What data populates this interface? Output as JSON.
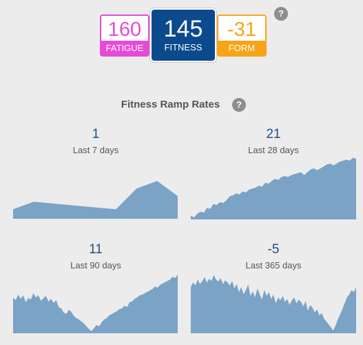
{
  "summary": {
    "fatigue": {
      "value": "160",
      "label": "FATIGUE",
      "color": "#e64bd7"
    },
    "fitness": {
      "value": "145",
      "label": "FITNESS",
      "color": "#0c4a8e"
    },
    "form": {
      "value": "-31",
      "label": "FORM",
      "color": "#f7a417"
    },
    "help_icon": "?"
  },
  "ramp": {
    "title": "Fitness Ramp Rates",
    "help_icon": "?",
    "fill_color": "#7aa3c6",
    "panels": [
      {
        "id": "p7",
        "value": "1",
        "label": "Last 7 days",
        "series": [
          5,
          9,
          8,
          7,
          6,
          5,
          16,
          20,
          12
        ],
        "ymax": 30
      },
      {
        "id": "p28",
        "value": "21",
        "label": "Last 28 days",
        "series": [
          4,
          2,
          6,
          8,
          7,
          12,
          11,
          16,
          15,
          18,
          17,
          20,
          24,
          25,
          27,
          26,
          29,
          28,
          31,
          32,
          33,
          35,
          34,
          38,
          37,
          40,
          42,
          41,
          44,
          45,
          44,
          46,
          47,
          48,
          49,
          46,
          49,
          52,
          53,
          51,
          53,
          55,
          57,
          58,
          56,
          58,
          60,
          61,
          62,
          61,
          64,
          63
        ],
        "ymax": 68
      },
      {
        "id": "p90",
        "value": "11",
        "label": "Last 90 days",
        "series": [
          52,
          48,
          56,
          50,
          55,
          45,
          51,
          49,
          58,
          52,
          55,
          47,
          51,
          54,
          46,
          50,
          44,
          48,
          38,
          36,
          30,
          28,
          34,
          31,
          25,
          22,
          20,
          17,
          14,
          10,
          6,
          3,
          8,
          12,
          10,
          16,
          20,
          22,
          26,
          28,
          30,
          32,
          35,
          36,
          40,
          38,
          45,
          46,
          50,
          52,
          55,
          56,
          58,
          60,
          62,
          64,
          68,
          66,
          70,
          72,
          74,
          76,
          78,
          82,
          80,
          85
        ],
        "ymax": 92
      },
      {
        "id": "p365",
        "value": "-5",
        "label": "Last 365 days",
        "series": [
          62,
          68,
          64,
          72,
          66,
          70,
          75,
          68,
          73,
          70,
          78,
          72,
          69,
          74,
          66,
          71,
          68,
          64,
          70,
          60,
          66,
          55,
          62,
          52,
          58,
          65,
          50,
          56,
          48,
          60,
          52,
          45,
          58,
          50,
          55,
          46,
          52,
          40,
          48,
          44,
          50,
          42,
          46,
          38,
          44,
          48,
          40,
          45,
          42,
          36,
          43,
          30,
          38,
          34,
          28,
          32,
          24,
          27,
          20,
          16,
          12,
          8,
          4,
          10,
          18,
          25,
          32,
          40,
          48,
          52,
          58,
          55,
          62
        ],
        "ymax": 85
      }
    ]
  }
}
